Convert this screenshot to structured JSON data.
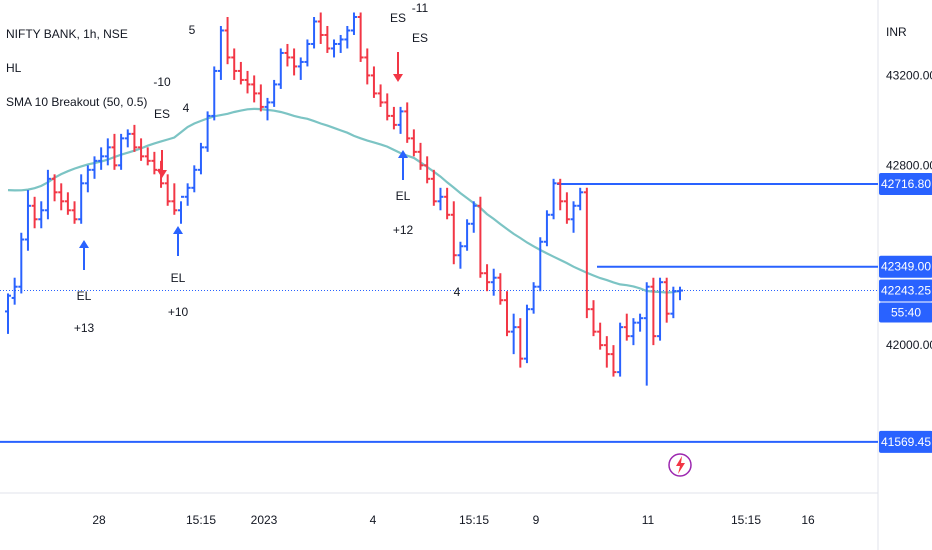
{
  "legend": {
    "symbol": "NIFTY BANK, 1h, NSE",
    "indicator_1": "HL",
    "indicator_2": "SMA 10 Breakout (50, 0.5)"
  },
  "chart_data": {
    "type": "candlestick",
    "currency_label": "INR",
    "y_ticks": [
      "43200.00",
      "42800.00",
      "42000.00"
    ],
    "x_ticks": [
      "28",
      "15:15",
      "2023",
      "4",
      "15:15",
      "9",
      "11",
      "15:15",
      "16"
    ],
    "price_tags": [
      {
        "value": "42716.80",
        "kind": "level"
      },
      {
        "value": "42349.00",
        "kind": "level"
      },
      {
        "value": "42243.25",
        "kind": "last"
      },
      {
        "value": "55:40",
        "kind": "countdown"
      },
      {
        "value": "41569.45",
        "kind": "level"
      }
    ],
    "levels": [
      42716.8,
      42349.0,
      41569.45
    ],
    "last_price": 42243.25,
    "y_range": [
      41400,
      43500
    ],
    "signals": [
      {
        "label": "EL",
        "size": "+13",
        "direction": "long",
        "order": "label-first"
      },
      {
        "label": "EL",
        "size": "+10",
        "direction": "long",
        "order": "label-first"
      },
      {
        "label": "ES",
        "size": "-10",
        "direction": "short",
        "order": "size-first"
      },
      {
        "label": "ES",
        "size": "-11",
        "direction": "short",
        "order": "size-first"
      },
      {
        "label": "EL",
        "size": "+12",
        "direction": "long",
        "order": "label-first"
      }
    ],
    "bar_counts": [
      "5",
      "4",
      "4"
    ],
    "colors": {
      "up": "#2962ff",
      "down": "#f23645",
      "sma": "#7cc4c4",
      "level": "#2962ff",
      "long_arrow": "#2962ff",
      "short_arrow": "#f23645"
    },
    "candles": [
      [
        42150,
        42230,
        42050,
        42220
      ],
      [
        42210,
        42300,
        42180,
        42260
      ],
      [
        42260,
        42500,
        42230,
        42470
      ],
      [
        42470,
        42690,
        42420,
        42620
      ],
      [
        42620,
        42660,
        42520,
        42560
      ],
      [
        42560,
        42640,
        42520,
        42600
      ],
      [
        42600,
        42780,
        42560,
        42740
      ],
      [
        42740,
        42760,
        42640,
        42680
      ],
      [
        42680,
        42720,
        42600,
        42640
      ],
      [
        42640,
        42680,
        42580,
        42600
      ],
      [
        42600,
        42640,
        42540,
        42560
      ],
      [
        42560,
        42760,
        42540,
        42720
      ],
      [
        42720,
        42800,
        42680,
        42780
      ],
      [
        42780,
        42840,
        42740,
        42820
      ],
      [
        42820,
        42880,
        42780,
        42840
      ],
      [
        42840,
        42920,
        42800,
        42880
      ],
      [
        42880,
        42940,
        42780,
        42800
      ],
      [
        42800,
        42940,
        42780,
        42920
      ],
      [
        42920,
        42960,
        42880,
        42940
      ],
      [
        42940,
        42980,
        42860,
        42880
      ],
      [
        42880,
        42920,
        42820,
        42840
      ],
      [
        42840,
        42880,
        42800,
        42820
      ],
      [
        42820,
        42860,
        42760,
        42780
      ],
      [
        42780,
        42820,
        42700,
        42720
      ],
      [
        42720,
        42760,
        42620,
        42640
      ],
      [
        42640,
        42720,
        42580,
        42600
      ],
      [
        42600,
        42640,
        42540,
        42660
      ],
      [
        42660,
        42720,
        42620,
        42700
      ],
      [
        42700,
        42800,
        42680,
        42780
      ],
      [
        42780,
        42900,
        42760,
        42880
      ],
      [
        42880,
        43040,
        42860,
        43020
      ],
      [
        43020,
        43240,
        43000,
        43220
      ],
      [
        43220,
        43420,
        43180,
        43400
      ],
      [
        43400,
        43460,
        43250,
        43280
      ],
      [
        43280,
        43320,
        43180,
        43220
      ],
      [
        43220,
        43260,
        43160,
        43180
      ],
      [
        43180,
        43220,
        43120,
        43160
      ],
      [
        43160,
        43200,
        43080,
        43120
      ],
      [
        43120,
        43160,
        43040,
        43060
      ],
      [
        43060,
        43100,
        43000,
        43080
      ],
      [
        43080,
        43180,
        43060,
        43160
      ],
      [
        43160,
        43320,
        43140,
        43300
      ],
      [
        43300,
        43340,
        43240,
        43280
      ],
      [
        43280,
        43320,
        43200,
        43240
      ],
      [
        43240,
        43280,
        43180,
        43260
      ],
      [
        43260,
        43360,
        43240,
        43340
      ],
      [
        43340,
        43460,
        43320,
        43440
      ],
      [
        43440,
        43480,
        43340,
        43380
      ],
      [
        43380,
        43420,
        43300,
        43320
      ],
      [
        43320,
        43360,
        43280,
        43340
      ],
      [
        43340,
        43380,
        43300,
        43360
      ],
      [
        43360,
        43420,
        43320,
        43400
      ],
      [
        43400,
        43480,
        43380,
        43460
      ],
      [
        43460,
        43480,
        43260,
        43280
      ],
      [
        43280,
        43320,
        43160,
        43200
      ],
      [
        43200,
        43240,
        43100,
        43120
      ],
      [
        43120,
        43160,
        43060,
        43080
      ],
      [
        43080,
        43120,
        43000,
        43020
      ],
      [
        43020,
        43060,
        42960,
        42980
      ],
      [
        42980,
        43060,
        42940,
        43040
      ],
      [
        43040,
        43080,
        42900,
        42920
      ],
      [
        42920,
        42960,
        42840,
        42860
      ],
      [
        42860,
        42900,
        42780,
        42800
      ],
      [
        42800,
        42840,
        42720,
        42740
      ],
      [
        42740,
        42780,
        42620,
        42640
      ],
      [
        42640,
        42700,
        42600,
        42660
      ],
      [
        42660,
        42700,
        42560,
        42580
      ],
      [
        42580,
        42640,
        42360,
        42400
      ],
      [
        42400,
        42460,
        42340,
        42440
      ],
      [
        42440,
        42560,
        42420,
        42540
      ],
      [
        42540,
        42640,
        42500,
        42620
      ],
      [
        42620,
        42660,
        42300,
        42320
      ],
      [
        42320,
        42360,
        42240,
        42280
      ],
      [
        42280,
        42340,
        42220,
        42300
      ],
      [
        42300,
        42320,
        42180,
        42200
      ],
      [
        42200,
        42240,
        42040,
        42060
      ],
      [
        42060,
        42140,
        41960,
        42080
      ],
      [
        42080,
        42120,
        41900,
        41940
      ],
      [
        41940,
        42180,
        41920,
        42160
      ],
      [
        42160,
        42280,
        42140,
        42260
      ],
      [
        42260,
        42480,
        42240,
        42460
      ],
      [
        42460,
        42600,
        42440,
        42580
      ],
      [
        42580,
        42740,
        42560,
        42720
      ],
      [
        42720,
        42740,
        42600,
        42640
      ],
      [
        42640,
        42680,
        42540,
        42560
      ],
      [
        42560,
        42640,
        42500,
        42620
      ],
      [
        42620,
        42700,
        42600,
        42680
      ],
      [
        42680,
        42700,
        42120,
        42160
      ],
      [
        42160,
        42200,
        42040,
        42060
      ],
      [
        42060,
        42100,
        41980,
        42000
      ],
      [
        42000,
        42040,
        41900,
        41960
      ],
      [
        41960,
        42000,
        41860,
        41880
      ],
      [
        41880,
        42100,
        41860,
        42080
      ],
      [
        42080,
        42140,
        42020,
        42040
      ],
      [
        42040,
        42120,
        42000,
        42100
      ],
      [
        42100,
        42140,
        42060,
        42120
      ],
      [
        42120,
        42280,
        41820,
        42260
      ],
      [
        42260,
        42300,
        42000,
        42040
      ],
      [
        42040,
        42300,
        42020,
        42280
      ],
      [
        42280,
        42300,
        42100,
        42140
      ],
      [
        42140,
        42260,
        42120,
        42240
      ],
      [
        42240,
        42260,
        42200,
        42243
      ]
    ]
  }
}
